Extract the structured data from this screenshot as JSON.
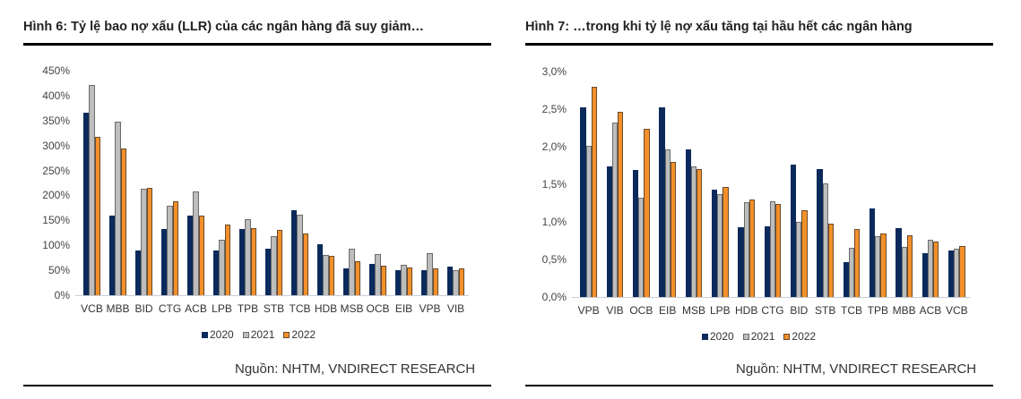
{
  "colors": {
    "s2020": "#0b2a5b",
    "s2021": "#bdbdbd",
    "s2022": "#f2902a"
  },
  "left": {
    "title": "Hình 6: Tỷ lệ bao nợ xấu (LLR) của các ngân hàng đã suy giảm…",
    "source": "Nguồn: NHTM, VNDIRECT RESEARCH",
    "legend": [
      "2020",
      "2021",
      "2022"
    ]
  },
  "right": {
    "title": "Hình 7: …trong khi tỷ lệ nợ xấu tăng tại hầu hết các ngân hàng",
    "source": "Nguồn: NHTM, VNDIRECT RESEARCH",
    "legend": [
      "2020",
      "2021",
      "2022"
    ]
  },
  "chart_data": [
    {
      "type": "bar",
      "title": "Hình 6: Tỷ lệ bao nợ xấu (LLR) của các ngân hàng đã suy giảm…",
      "xlabel": "",
      "ylabel": "",
      "ylim": [
        0,
        450
      ],
      "yticks": [
        "0%",
        "50%",
        "100%",
        "150%",
        "200%",
        "250%",
        "300%",
        "350%",
        "400%",
        "450%"
      ],
      "grid": false,
      "legend_position": "bottom",
      "categories": [
        "VCB",
        "MBB",
        "BID",
        "CTG",
        "ACB",
        "LPB",
        "TPB",
        "STB",
        "TCB",
        "HDB",
        "MSB",
        "OCB",
        "EIB",
        "VPB",
        "VIB"
      ],
      "series": [
        {
          "name": "2020",
          "values": [
            366,
            160,
            90,
            133,
            160,
            89,
            133,
            93,
            171,
            102,
            54,
            62,
            50,
            50,
            58
          ]
        },
        {
          "name": "2021",
          "values": [
            422,
            348,
            214,
            180,
            208,
            111,
            152,
            118,
            162,
            81,
            94,
            82,
            61,
            84,
            51
          ]
        },
        {
          "name": "2022",
          "values": [
            317,
            294,
            216,
            188,
            159,
            142,
            134,
            131,
            124,
            79,
            69,
            60,
            56,
            54,
            54
          ]
        }
      ],
      "source": "Nguồn: NHTM, VNDIRECT RESEARCH"
    },
    {
      "type": "bar",
      "title": "Hình 7: …trong khi tỷ lệ nợ xấu tăng tại hầu hết các ngân hàng",
      "xlabel": "",
      "ylabel": "",
      "ylim": [
        0,
        3.0
      ],
      "yticks": [
        "0,0%",
        "0,5%",
        "1,0%",
        "1,5%",
        "2,0%",
        "2,5%",
        "3,0%"
      ],
      "grid": false,
      "legend_position": "bottom",
      "categories": [
        "VPB",
        "VIB",
        "OCB",
        "EIB",
        "MSB",
        "LPB",
        "HDB",
        "CTG",
        "BID",
        "STB",
        "TCB",
        "TPB",
        "MBB",
        "ACB",
        "VCB"
      ],
      "series": [
        {
          "name": "2020",
          "values": [
            2.52,
            1.74,
            1.69,
            2.52,
            1.97,
            1.43,
            0.93,
            0.94,
            1.76,
            1.7,
            0.46,
            1.18,
            0.92,
            0.58,
            0.62
          ]
        },
        {
          "name": "2021",
          "values": [
            2.01,
            2.32,
            1.32,
            1.97,
            1.74,
            1.37,
            1.26,
            1.27,
            1.0,
            1.51,
            0.65,
            0.81,
            0.67,
            0.76,
            0.64
          ]
        },
        {
          "name": "2022",
          "values": [
            2.8,
            2.46,
            2.24,
            1.8,
            1.7,
            1.46,
            1.3,
            1.24,
            1.16,
            0.98,
            0.91,
            0.84,
            0.82,
            0.74,
            0.68
          ]
        }
      ],
      "source": "Nguồn: NHTM, VNDIRECT RESEARCH"
    }
  ]
}
